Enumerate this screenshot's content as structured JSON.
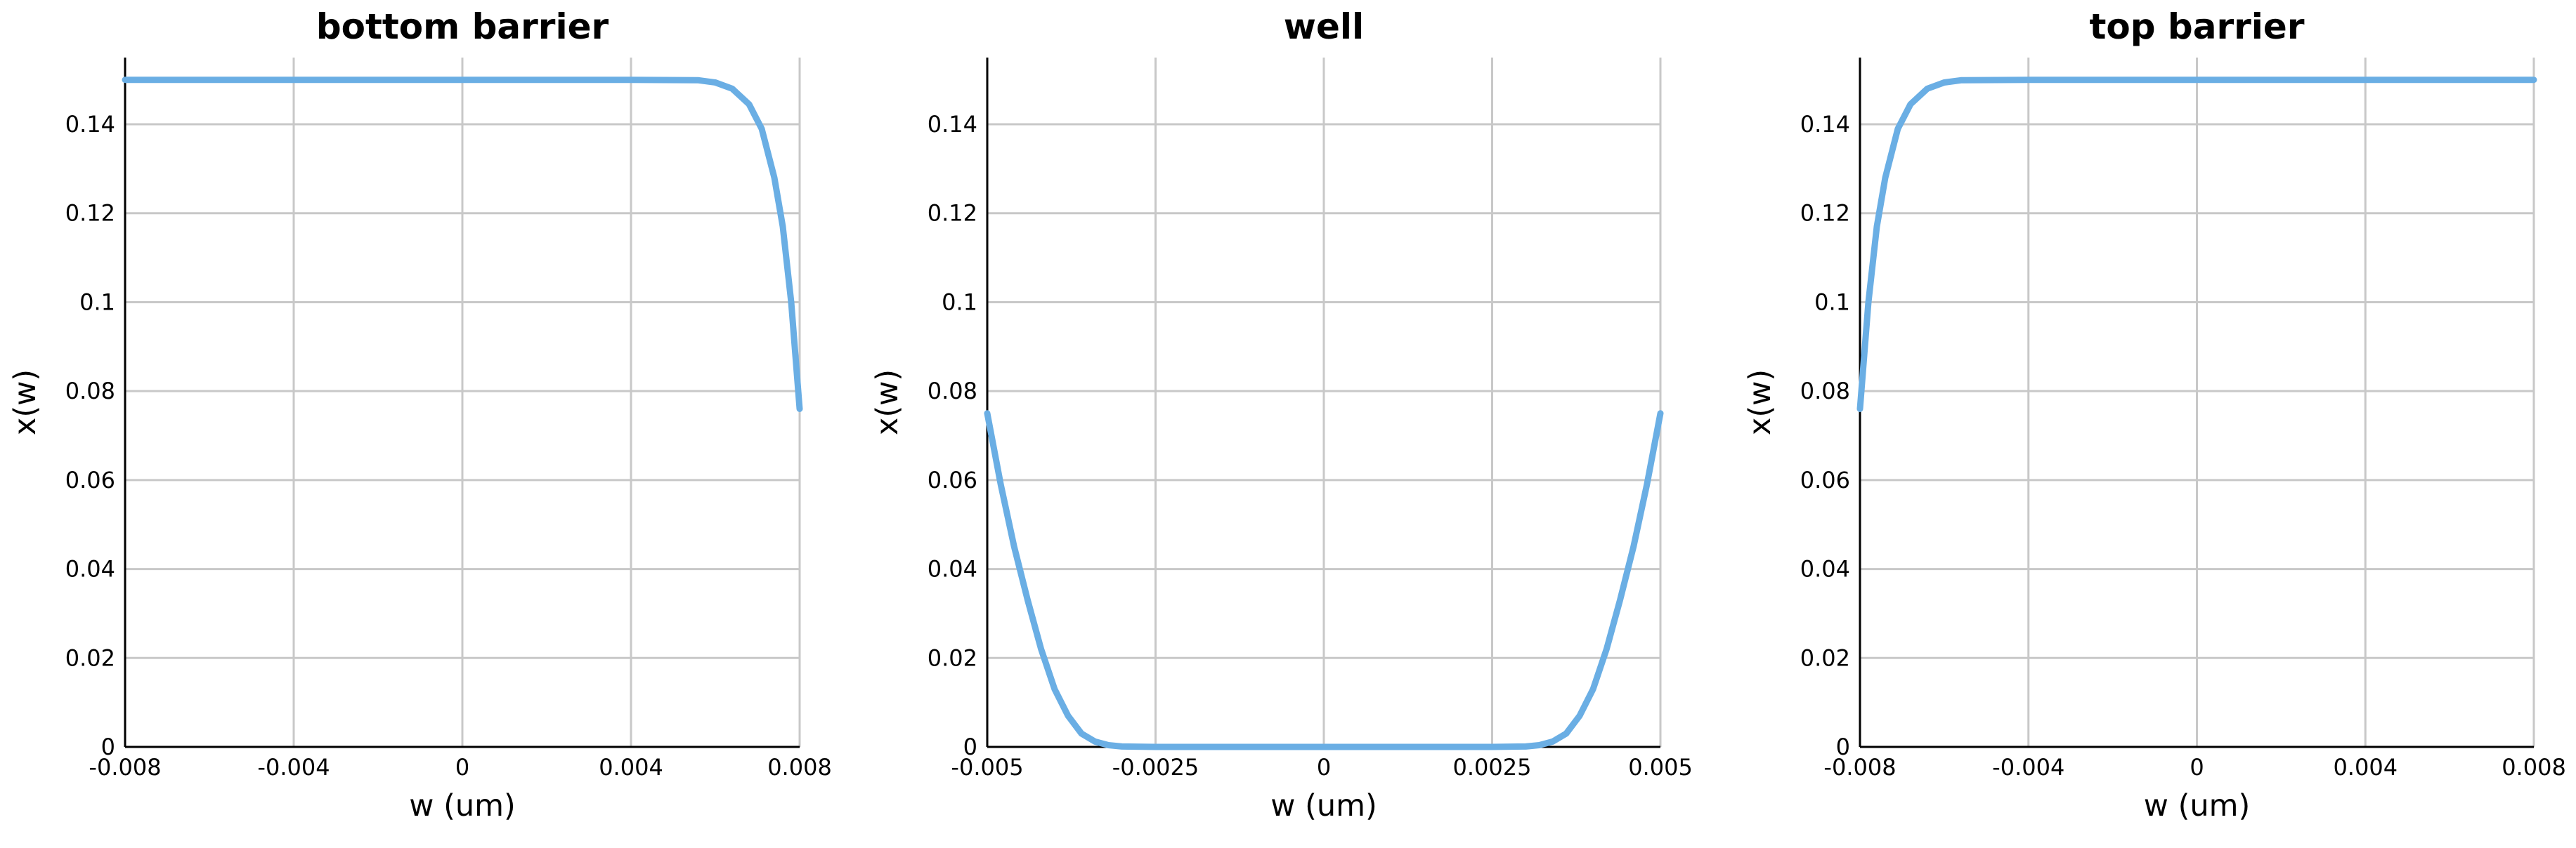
{
  "colors": {
    "series": "#6aaee4",
    "grid": "#c8c8c8",
    "axis": "#000000"
  },
  "chart_data": [
    {
      "type": "line",
      "title": "bottom barrier",
      "xlabel": "w (um)",
      "ylabel": "x(w)",
      "xlim": [
        -0.008,
        0.008
      ],
      "ylim": [
        0,
        0.155
      ],
      "grid": true,
      "xticks": [
        -0.008,
        -0.004,
        0,
        0.004,
        0.008
      ],
      "xtick_labels": [
        "-0.008",
        "-0.004",
        "0",
        "0.004",
        "0.008"
      ],
      "yticks": [
        0,
        0.02,
        0.04,
        0.06,
        0.08,
        0.1,
        0.12,
        0.14
      ],
      "ytick_labels": [
        "0",
        "0.02",
        "0.04",
        "0.06",
        "0.08",
        "0.1",
        "0.12",
        "0.14"
      ],
      "series": [
        {
          "x": [
            -0.008,
            -0.004,
            0,
            0.004,
            0.0056,
            0.006,
            0.0064,
            0.0068,
            0.0071,
            0.0074,
            0.0076,
            0.0078,
            0.008
          ],
          "y": [
            0.15,
            0.15,
            0.15,
            0.15,
            0.1499,
            0.1494,
            0.148,
            0.1445,
            0.139,
            0.128,
            0.117,
            0.1,
            0.076
          ]
        }
      ]
    },
    {
      "type": "line",
      "title": "well",
      "xlabel": "w (um)",
      "ylabel": "x(w)",
      "xlim": [
        -0.005,
        0.005
      ],
      "ylim": [
        0,
        0.155
      ],
      "grid": true,
      "xticks": [
        -0.005,
        -0.0025,
        0,
        0.0025,
        0.005
      ],
      "xtick_labels": [
        "-0.005",
        "-0.0025",
        "0",
        "0.0025",
        "0.005"
      ],
      "yticks": [
        0,
        0.02,
        0.04,
        0.06,
        0.08,
        0.1,
        0.12,
        0.14
      ],
      "ytick_labels": [
        "0",
        "0.02",
        "0.04",
        "0.06",
        "0.08",
        "0.1",
        "0.12",
        "0.14"
      ],
      "series": [
        {
          "x": [
            -0.005,
            -0.0048,
            -0.0046,
            -0.0044,
            -0.0042,
            -0.004,
            -0.0038,
            -0.0036,
            -0.0034,
            -0.0032,
            -0.003,
            -0.0025,
            0,
            0.0025,
            0.003,
            0.0032,
            0.0034,
            0.0036,
            0.0038,
            0.004,
            0.0042,
            0.0044,
            0.0046,
            0.0048,
            0.005
          ],
          "y": [
            0.075,
            0.059,
            0.045,
            0.033,
            0.022,
            0.013,
            0.007,
            0.003,
            0.0012,
            0.0004,
            0.0001,
            0,
            0,
            0,
            0.0001,
            0.0004,
            0.0012,
            0.003,
            0.007,
            0.013,
            0.022,
            0.033,
            0.045,
            0.059,
            0.075
          ]
        }
      ]
    },
    {
      "type": "line",
      "title": "top barrier",
      "xlabel": "w (um)",
      "ylabel": "x(w)",
      "xlim": [
        -0.008,
        0.008
      ],
      "ylim": [
        0,
        0.155
      ],
      "grid": true,
      "xticks": [
        -0.008,
        -0.004,
        0,
        0.004,
        0.008
      ],
      "xtick_labels": [
        "-0.008",
        "-0.004",
        "0",
        "0.004",
        "0.008"
      ],
      "yticks": [
        0,
        0.02,
        0.04,
        0.06,
        0.08,
        0.1,
        0.12,
        0.14
      ],
      "ytick_labels": [
        "0",
        "0.02",
        "0.04",
        "0.06",
        "0.08",
        "0.1",
        "0.12",
        "0.14"
      ],
      "series": [
        {
          "x": [
            -0.008,
            -0.0078,
            -0.0076,
            -0.0074,
            -0.0071,
            -0.0068,
            -0.0064,
            -0.006,
            -0.0056,
            -0.004,
            0,
            0.004,
            0.008
          ],
          "y": [
            0.076,
            0.1,
            0.117,
            0.128,
            0.139,
            0.1445,
            0.148,
            0.1494,
            0.1499,
            0.15,
            0.15,
            0.15,
            0.15
          ]
        }
      ]
    }
  ]
}
